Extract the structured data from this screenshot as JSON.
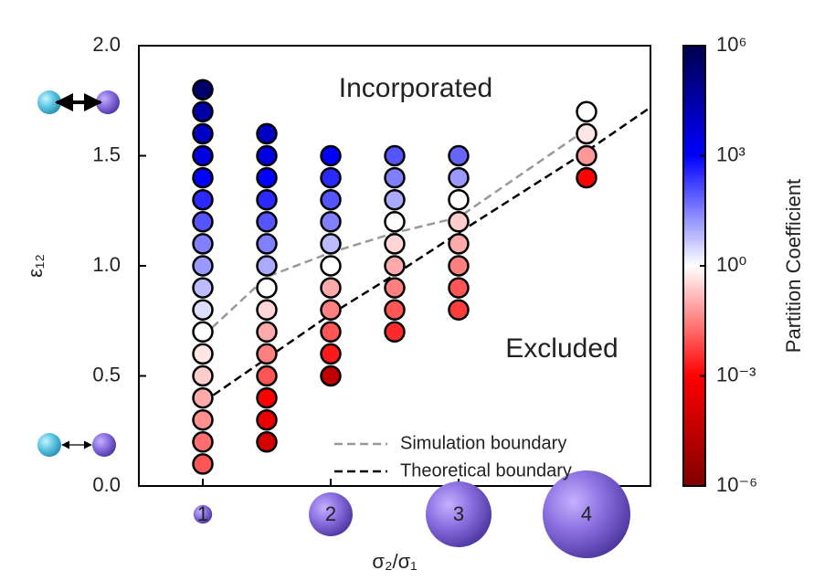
{
  "chart_data": {
    "type": "scatter",
    "xlabel": "σ₂/σ₁",
    "ylabel": "ε₁₂",
    "xlim": [
      0.5,
      4.5
    ],
    "ylim": [
      0,
      2
    ],
    "xticks": [
      1,
      2,
      3,
      4
    ],
    "yticks": [
      {
        "value": 0,
        "label": "0.0"
      },
      0.5,
      {
        "value": 1,
        "label": "1.0"
      },
      1.5,
      {
        "value": 2,
        "label": "2.0"
      }
    ],
    "colorbar_label": "Partition Coefficient",
    "clim": [
      -6,
      6
    ],
    "cticks": [
      {
        "value": -6,
        "label": "10⁻⁶"
      },
      {
        "value": -3,
        "label": "10⁻³"
      },
      {
        "value": 0,
        "label": "10⁰"
      },
      {
        "value": 3,
        "label": "10³"
      },
      {
        "value": 6,
        "label": "10⁶"
      }
    ],
    "colormap": [
      "#800000",
      "#ff0000",
      "#ffffff",
      "#0000ff",
      "#00004d"
    ],
    "annotations": [
      {
        "text": "Incorporated",
        "color": "#1a1adb"
      },
      {
        "text": "Excluded",
        "color": "#e0201c"
      }
    ],
    "series": [
      {
        "x": [
          1,
          1,
          1,
          1,
          1,
          1,
          1,
          1,
          1,
          1,
          1,
          1,
          1,
          1,
          1,
          1,
          1,
          1
        ],
        "values": [
          1.8,
          1.7,
          1.6,
          1.5,
          1.4,
          1.3,
          1.2,
          1.1,
          1.0,
          0.9,
          0.8,
          0.7,
          0.6,
          0.5,
          0.4,
          0.3,
          0.2,
          0.1
        ],
        "partition": [
          5.5,
          4.5,
          4,
          3.5,
          3,
          2.5,
          2,
          1.5,
          1.2,
          0.8,
          0.4,
          0,
          -0.3,
          -0.6,
          -1,
          -1.3,
          -1.7,
          -2
        ]
      },
      {
        "x": [
          1.5,
          1.5,
          1.5,
          1.5,
          1.5,
          1.5,
          1.5,
          1.5,
          1.5,
          1.5,
          1.5,
          1.5,
          1.5,
          1.5,
          1.5
        ],
        "values": [
          1.6,
          1.5,
          1.4,
          1.3,
          1.2,
          1.1,
          1.0,
          0.9,
          0.8,
          0.7,
          0.6,
          0.5,
          0.4,
          0.3,
          0.2
        ],
        "partition": [
          4,
          3.5,
          3,
          2.5,
          2,
          1.5,
          1,
          0,
          -0.5,
          -1,
          -1.5,
          -2,
          -3,
          -3.5,
          -4
        ]
      },
      {
        "x": [
          2,
          2,
          2,
          2,
          2,
          2,
          2,
          2,
          2,
          2,
          2
        ],
        "values": [
          1.5,
          1.4,
          1.3,
          1.2,
          1.1,
          1.0,
          0.9,
          0.8,
          0.7,
          0.6,
          0.5
        ],
        "partition": [
          3,
          2.5,
          2,
          1.5,
          0.8,
          0,
          -1,
          -1.5,
          -2,
          -2.7,
          -4.5
        ]
      },
      {
        "x": [
          2.5,
          2.5,
          2.5,
          2.5,
          2.5,
          2.5,
          2.5,
          2.5,
          2.5
        ],
        "values": [
          1.5,
          1.4,
          1.3,
          1.2,
          1.1,
          1.0,
          0.9,
          0.8,
          0.7
        ],
        "partition": [
          2,
          1.5,
          1,
          0,
          -0.5,
          -1,
          -1.5,
          -2,
          -2.5
        ]
      },
      {
        "x": [
          3,
          3,
          3,
          3,
          3,
          3,
          3,
          3
        ],
        "values": [
          1.5,
          1.4,
          1.3,
          1.2,
          1.1,
          1.0,
          0.9,
          0.8
        ],
        "partition": [
          1.8,
          1.2,
          0,
          -0.6,
          -1,
          -1.5,
          -2,
          -2.3
        ]
      },
      {
        "x": [
          4,
          4,
          4,
          4
        ],
        "values": [
          1.7,
          1.6,
          1.5,
          1.4
        ],
        "partition": [
          0,
          -0.3,
          -1.2,
          -3
        ]
      }
    ],
    "lines": [
      {
        "name": "Simulation boundary",
        "color": "#999999",
        "x": [
          1,
          1.5,
          2,
          2.5,
          3,
          4
        ],
        "values": [
          0.68,
          0.95,
          1.06,
          1.15,
          1.22,
          1.62
        ]
      },
      {
        "name": "Theoretical boundary",
        "color": "#000000",
        "x": [
          1,
          1.5,
          2,
          2.5,
          3,
          4,
          4.5
        ],
        "values": [
          0.38,
          0.58,
          0.78,
          0.96,
          1.15,
          1.52,
          1.72
        ]
      }
    ]
  }
}
